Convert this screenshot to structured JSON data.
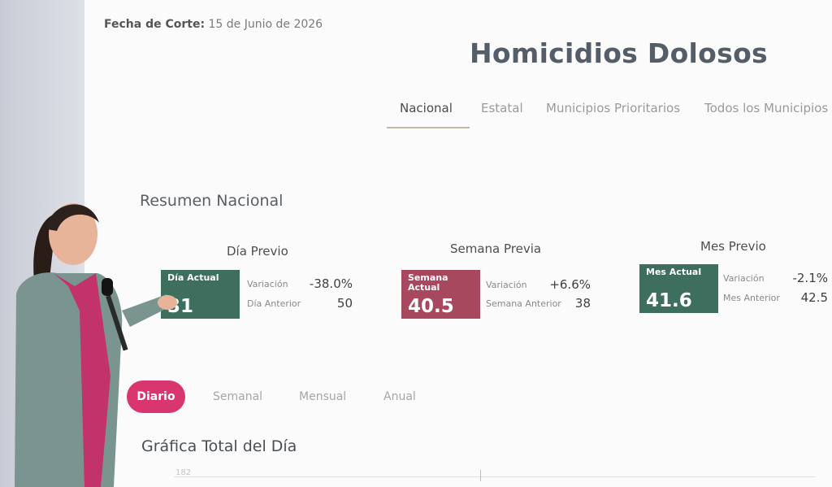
{
  "header": {
    "cutoff_label": "Fecha de Corte:",
    "cutoff_date": "15 de Junio de 2026",
    "title": "Homicidios Dolosos"
  },
  "tabs": [
    {
      "label": "Nacional",
      "active": true
    },
    {
      "label": "Estatal",
      "active": false
    },
    {
      "label": "Municipios Prioritarios",
      "active": false
    },
    {
      "label": "Todos los Municipios",
      "active": false
    }
  ],
  "summary": {
    "title": "Resumen Nacional",
    "cards": [
      {
        "heading": "Día Previo",
        "metric_label": "Día Actual",
        "metric_value": "31",
        "variation_label": "Variación",
        "variation_value": "-38.0%",
        "previous_label": "Día Anterior",
        "previous_value": "50",
        "color": "#3e6e5e"
      },
      {
        "heading": "Semana Previa",
        "metric_label": "Semana Actual",
        "metric_value": "40.5",
        "variation_label": "Variación",
        "variation_value": "+6.6%",
        "previous_label": "Semana Anterior",
        "previous_value": "38",
        "color": "#a8485f"
      },
      {
        "heading": "Mes Previo",
        "metric_label": "Mes Actual",
        "metric_value": "41.6",
        "variation_label": "Variación",
        "variation_value": "-2.1%",
        "previous_label": "Mes Anterior",
        "previous_value": "42.5",
        "color": "#3e6e5e"
      }
    ]
  },
  "period_tabs": [
    {
      "label": "Diario",
      "active": true
    },
    {
      "label": "Semanal",
      "active": false
    },
    {
      "label": "Mensual",
      "active": false
    },
    {
      "label": "Anual",
      "active": false
    }
  ],
  "chart": {
    "title": "Gráfica Total del Día",
    "first_tick": "182"
  },
  "colors": {
    "accent_pink": "#d9356f",
    "green": "#3e6e5e",
    "wine": "#a8485f"
  }
}
